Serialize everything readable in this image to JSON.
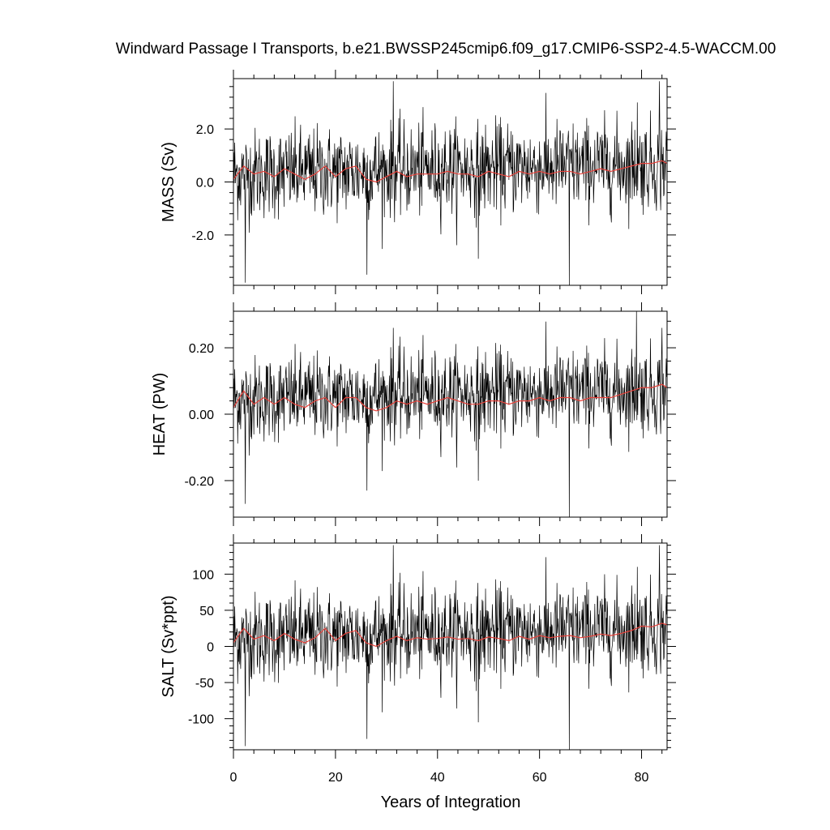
{
  "title": "Windward Passage I Transports, b.e21.BWSSP245cmip6.f09_g17.CMIP6-SSP2-4.5-WACCM.00",
  "xlabel": "Years of Integration",
  "x_ticks": [
    "0",
    "20",
    "40",
    "60",
    "80"
  ],
  "colors": {
    "raw": "#000000",
    "smooth": "#e8413a",
    "axes": "#000000"
  },
  "chart_data": [
    {
      "type": "line",
      "ylabel": "MASS (Sv)",
      "xlim": [
        0,
        85
      ],
      "ylim": [
        -3.9,
        3.9
      ],
      "y_ticks": [
        -2.0,
        0.0,
        2.0
      ],
      "y_tick_labels": [
        "-2.0",
        "0.0",
        "2.0"
      ],
      "series": [
        {
          "role": "monthly",
          "mean": 0.3,
          "noise_sd": 0.85
        },
        {
          "role": "annual-smooth",
          "x": [
            0,
            2,
            4,
            6,
            8,
            10,
            12,
            14,
            16,
            18,
            20,
            22,
            24,
            26,
            28,
            30,
            32,
            34,
            36,
            38,
            40,
            42,
            44,
            46,
            48,
            50,
            52,
            54,
            56,
            58,
            60,
            62,
            64,
            66,
            68,
            70,
            72,
            74,
            76,
            78,
            80,
            82,
            84,
            85
          ],
          "y": [
            0.1,
            0.6,
            0.3,
            0.4,
            0.2,
            0.5,
            0.3,
            0.1,
            0.3,
            0.6,
            0.2,
            0.5,
            0.6,
            0.1,
            0.0,
            0.2,
            0.4,
            0.2,
            0.3,
            0.3,
            0.3,
            0.4,
            0.3,
            0.3,
            0.2,
            0.4,
            0.3,
            0.2,
            0.4,
            0.3,
            0.4,
            0.3,
            0.4,
            0.4,
            0.3,
            0.4,
            0.5,
            0.4,
            0.5,
            0.6,
            0.7,
            0.7,
            0.8,
            0.7
          ]
        }
      ],
      "spikes": [
        {
          "x": 2.3,
          "y": -3.8
        },
        {
          "x": 26.2,
          "y": -3.5
        },
        {
          "x": 31.3,
          "y": 3.8
        },
        {
          "x": 48.0,
          "y": -2.9
        },
        {
          "x": 65.8,
          "y": -3.9
        },
        {
          "x": 83.5,
          "y": 3.8
        },
        {
          "x": 79.2,
          "y": 3.0
        }
      ]
    },
    {
      "type": "line",
      "ylabel": "HEAT (PW)",
      "xlim": [
        0,
        85
      ],
      "ylim": [
        -0.31,
        0.31
      ],
      "y_ticks": [
        -0.2,
        0.0,
        0.2
      ],
      "y_tick_labels": [
        "-0.20",
        "0.00",
        "0.20"
      ],
      "series": [
        {
          "role": "monthly",
          "mean": 0.045,
          "noise_sd": 0.065
        },
        {
          "role": "annual-smooth",
          "x": [
            0,
            2,
            4,
            6,
            8,
            10,
            12,
            14,
            16,
            18,
            20,
            22,
            24,
            26,
            28,
            30,
            32,
            34,
            36,
            38,
            40,
            42,
            44,
            46,
            48,
            50,
            52,
            54,
            56,
            58,
            60,
            62,
            64,
            66,
            68,
            70,
            72,
            74,
            76,
            78,
            80,
            82,
            84,
            85
          ],
          "y": [
            0.02,
            0.07,
            0.03,
            0.05,
            0.03,
            0.05,
            0.03,
            0.02,
            0.04,
            0.05,
            0.02,
            0.05,
            0.05,
            0.02,
            0.01,
            0.02,
            0.04,
            0.03,
            0.04,
            0.03,
            0.04,
            0.05,
            0.04,
            0.03,
            0.03,
            0.04,
            0.04,
            0.03,
            0.04,
            0.04,
            0.05,
            0.04,
            0.05,
            0.05,
            0.04,
            0.05,
            0.05,
            0.05,
            0.06,
            0.07,
            0.08,
            0.08,
            0.09,
            0.08
          ]
        }
      ],
      "spikes": [
        {
          "x": 2.3,
          "y": -0.27
        },
        {
          "x": 26.2,
          "y": -0.23
        },
        {
          "x": 31.3,
          "y": 0.26
        },
        {
          "x": 48.0,
          "y": -0.2
        },
        {
          "x": 65.8,
          "y": -0.31
        },
        {
          "x": 79.0,
          "y": 0.31
        },
        {
          "x": 84.0,
          "y": 0.26
        }
      ]
    },
    {
      "type": "line",
      "ylabel": "SALT (Sv*ppt)",
      "xlim": [
        0,
        85
      ],
      "ylim": [
        -143,
        143
      ],
      "y_ticks": [
        -100,
        -50,
        0,
        50,
        100
      ],
      "y_tick_labels": [
        "-100",
        "-50",
        "0",
        "50",
        "100"
      ],
      "series": [
        {
          "role": "monthly",
          "mean": 12,
          "noise_sd": 31
        },
        {
          "role": "annual-smooth",
          "x": [
            0,
            2,
            4,
            6,
            8,
            10,
            12,
            14,
            16,
            18,
            20,
            22,
            24,
            26,
            28,
            30,
            32,
            34,
            36,
            38,
            40,
            42,
            44,
            46,
            48,
            50,
            52,
            54,
            56,
            58,
            60,
            62,
            64,
            66,
            68,
            70,
            72,
            74,
            76,
            78,
            80,
            82,
            84,
            85
          ],
          "y": [
            5,
            25,
            10,
            15,
            8,
            18,
            10,
            5,
            12,
            25,
            8,
            18,
            22,
            5,
            0,
            8,
            14,
            8,
            12,
            10,
            11,
            13,
            10,
            11,
            8,
            13,
            11,
            8,
            14,
            10,
            15,
            12,
            14,
            15,
            12,
            14,
            17,
            15,
            18,
            22,
            28,
            27,
            32,
            30
          ]
        }
      ],
      "spikes": [
        {
          "x": 2.3,
          "y": -138
        },
        {
          "x": 26.2,
          "y": -128
        },
        {
          "x": 31.3,
          "y": 140
        },
        {
          "x": 48.0,
          "y": -105
        },
        {
          "x": 65.8,
          "y": -143
        },
        {
          "x": 83.5,
          "y": 140
        },
        {
          "x": 79.2,
          "y": 110
        }
      ]
    }
  ]
}
